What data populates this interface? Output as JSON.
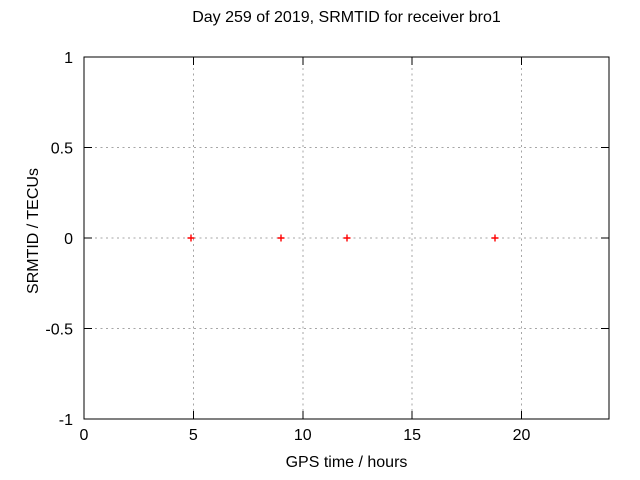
{
  "chart_data": {
    "type": "scatter",
    "title": "Day 259 of 2019, SRMTID for receiver bro1",
    "xlabel": "GPS time / hours",
    "ylabel": "SRMTID / TECUs",
    "xlim": [
      0,
      24
    ],
    "ylim": [
      -1,
      1
    ],
    "xticks": [
      {
        "value": 0,
        "label": "0"
      },
      {
        "value": 5,
        "label": "5"
      },
      {
        "value": 10,
        "label": "10"
      },
      {
        "value": 15,
        "label": "15"
      },
      {
        "value": 20,
        "label": "20"
      }
    ],
    "yticks": [
      {
        "value": -1,
        "label": "-1"
      },
      {
        "value": -0.5,
        "label": "-0.5"
      },
      {
        "value": 0,
        "label": "0"
      },
      {
        "value": 0.5,
        "label": "0.5"
      },
      {
        "value": 1,
        "label": "1"
      }
    ],
    "grid": true,
    "legend": false,
    "series": [
      {
        "name": "SRMTID",
        "marker": "plus",
        "color": "#ff0000",
        "x": [
          4.9,
          9.0,
          12.0,
          18.8
        ],
        "y": [
          0,
          0,
          0,
          0
        ]
      }
    ],
    "colors": {
      "grid": "#a6a6a6",
      "axis": "#000000",
      "text": "#000000",
      "background": "#ffffff"
    }
  }
}
